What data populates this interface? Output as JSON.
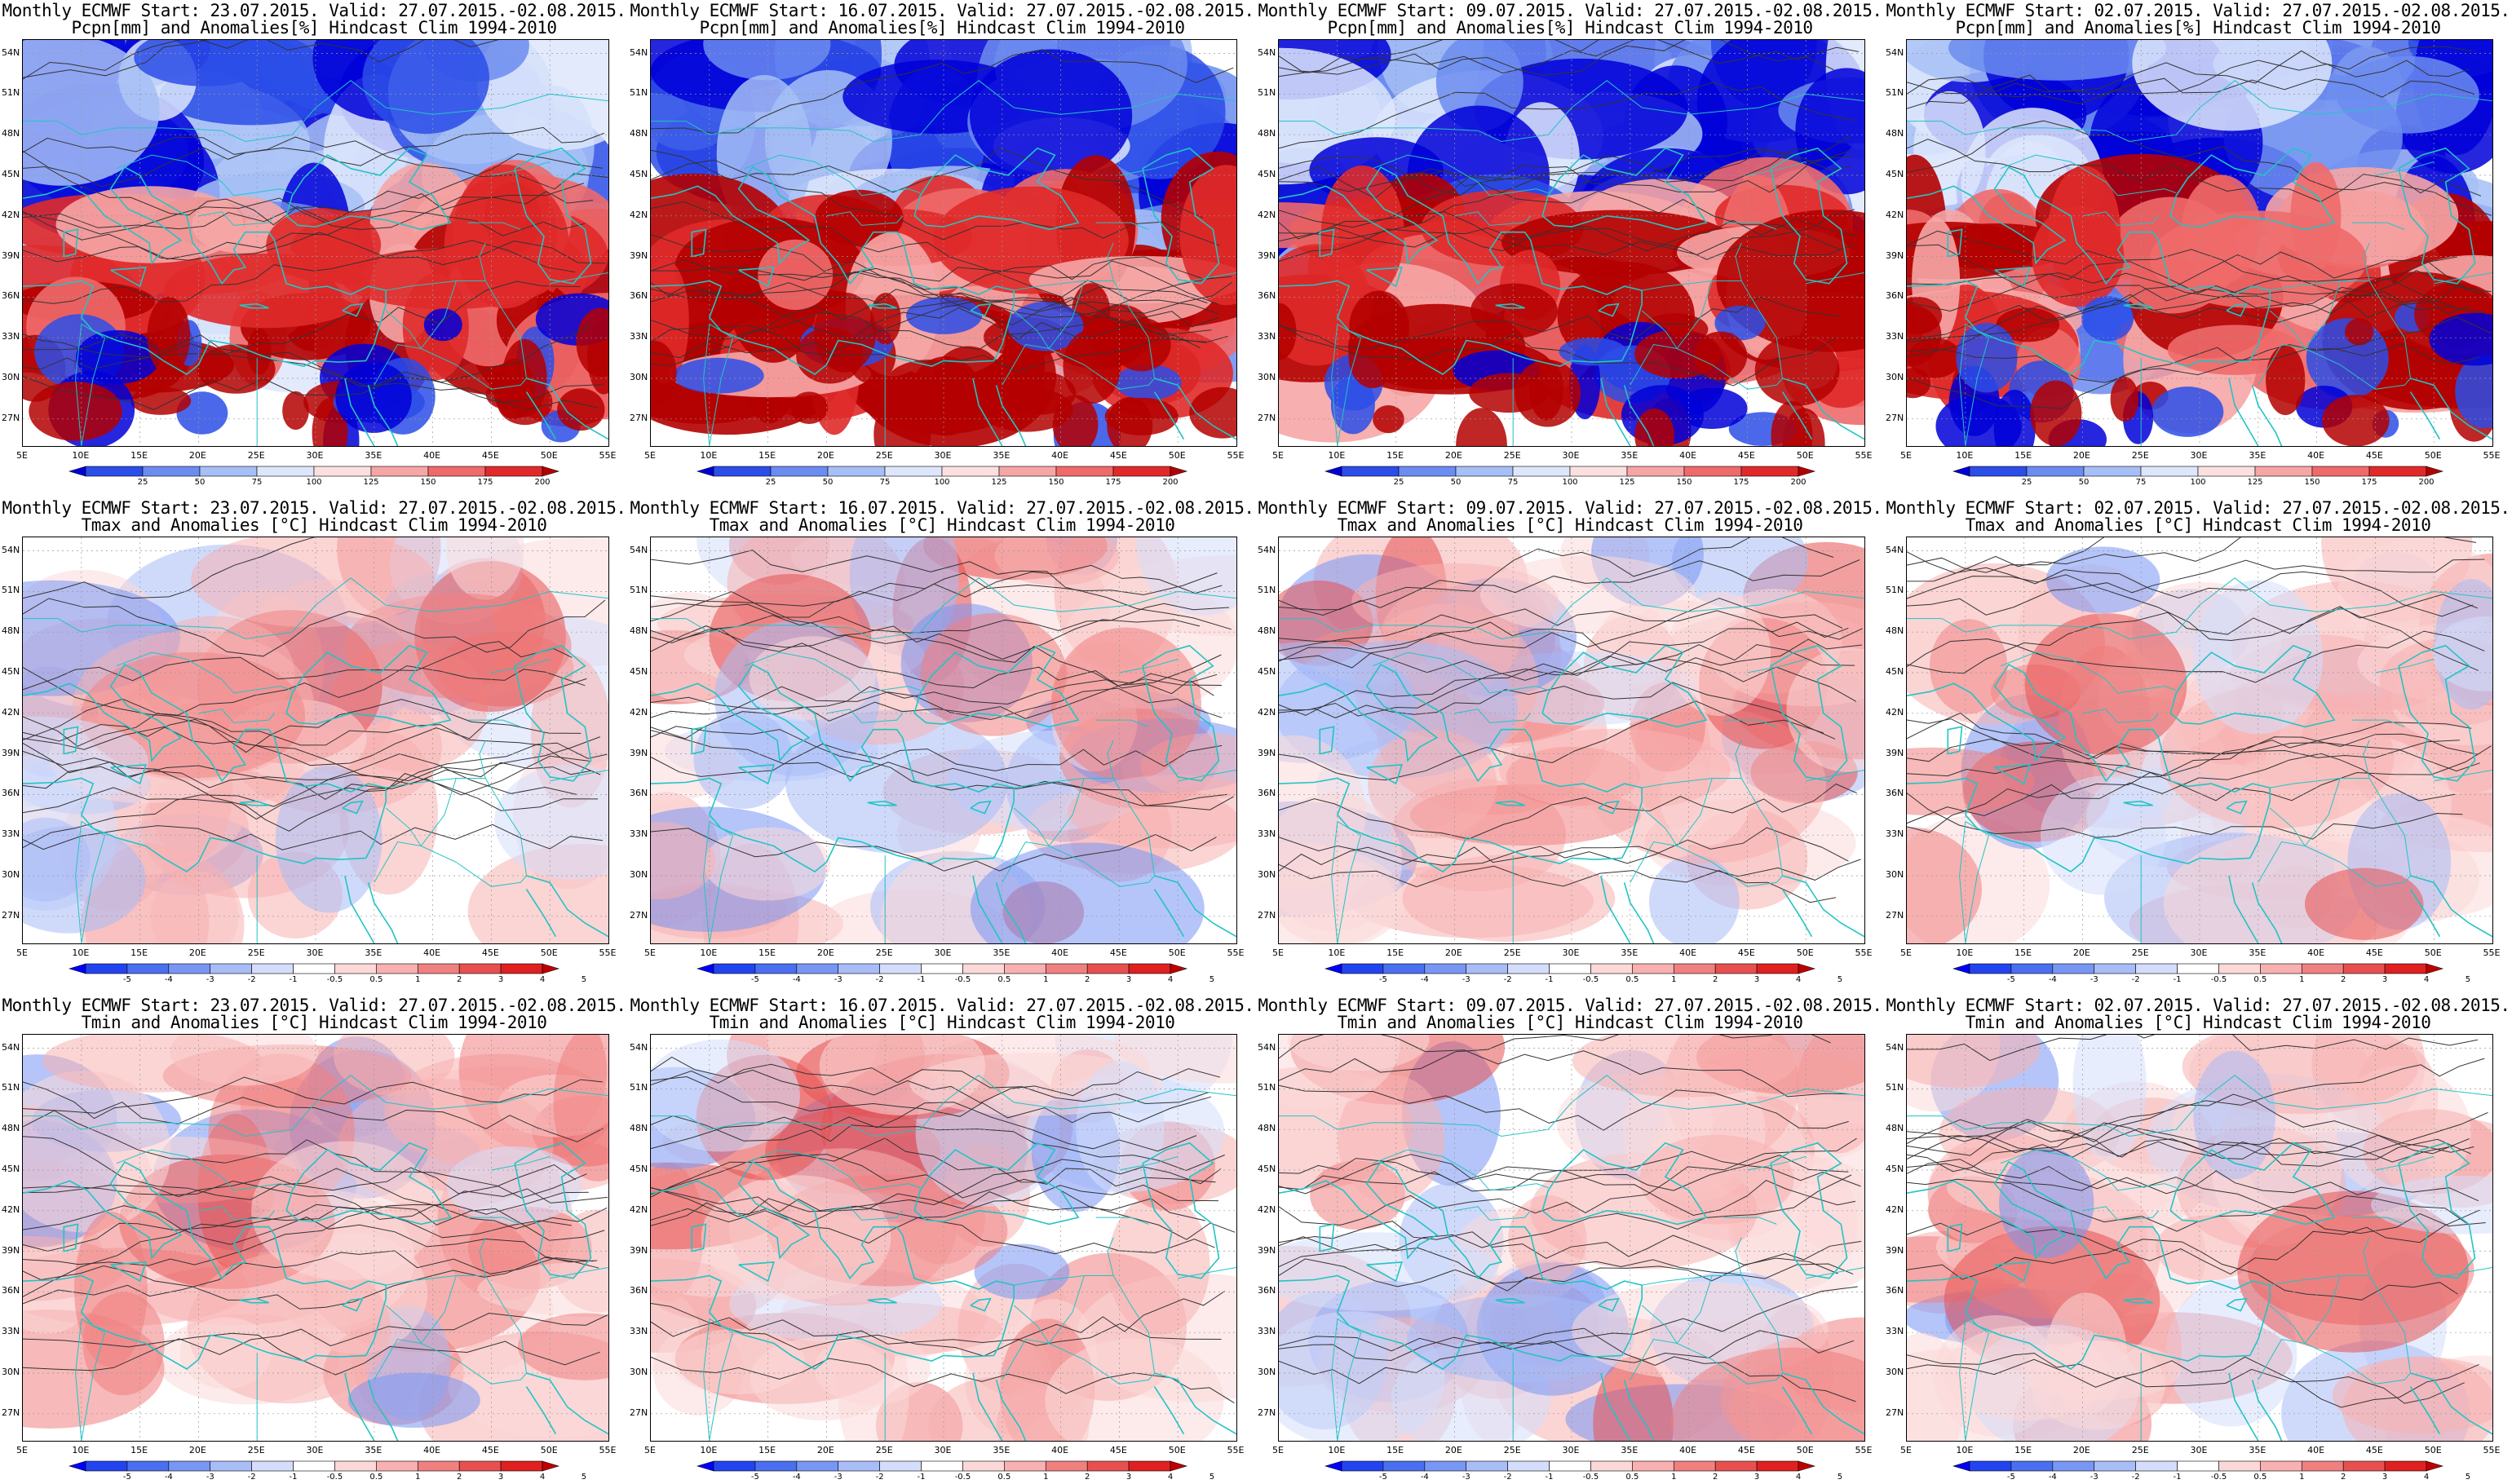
{
  "panels": [
    {
      "row": 0,
      "col": 0,
      "type": "precip",
      "title1": "Monthly ECMWF Start: 23.07.2015. Valid: 27.07.2015.-02.08.2015.",
      "title2": "Pcpn[mm] and Anomalies[%] Hindcast Clim 1994-2010",
      "seed": 11
    },
    {
      "row": 0,
      "col": 1,
      "type": "precip",
      "title1": "Monthly ECMWF Start: 16.07.2015. Valid: 27.07.2015.-02.08.2015.",
      "title2": "Pcpn[mm] and Anomalies[%] Hindcast Clim 1994-2010",
      "seed": 12
    },
    {
      "row": 0,
      "col": 2,
      "type": "precip",
      "title1": "Monthly ECMWF Start: 09.07.2015. Valid: 27.07.2015.-02.08.2015.",
      "title2": "Pcpn[mm] and Anomalies[%] Hindcast Clim 1994-2010",
      "seed": 13
    },
    {
      "row": 0,
      "col": 3,
      "type": "precip",
      "title1": "Monthly ECMWF Start: 02.07.2015. Valid: 27.07.2015.-02.08.2015.",
      "title2": "Pcpn[mm] and Anomalies[%] Hindcast Clim 1994-2010",
      "seed": 14
    },
    {
      "row": 1,
      "col": 0,
      "type": "temp",
      "title1": "Monthly ECMWF Start: 23.07.2015. Valid: 27.07.2015.-02.08.2015.",
      "title2": "Tmax and Anomalies [°C] Hindcast Clim 1994-2010",
      "seed": 21
    },
    {
      "row": 1,
      "col": 1,
      "type": "temp",
      "title1": "Monthly ECMWF Start: 16.07.2015. Valid: 27.07.2015.-02.08.2015.",
      "title2": "Tmax and Anomalies [°C] Hindcast Clim 1994-2010",
      "seed": 22
    },
    {
      "row": 1,
      "col": 2,
      "type": "temp",
      "title1": "Monthly ECMWF Start: 09.07.2015. Valid: 27.07.2015.-02.08.2015.",
      "title2": "Tmax and Anomalies [°C] Hindcast Clim 1994-2010",
      "seed": 23
    },
    {
      "row": 1,
      "col": 3,
      "type": "temp",
      "title1": "Monthly ECMWF Start: 02.07.2015. Valid: 27.07.2015.-02.08.2015.",
      "title2": "Tmax and Anomalies [°C] Hindcast Clim 1994-2010",
      "seed": 24
    },
    {
      "row": 2,
      "col": 0,
      "type": "temp",
      "title1": "Monthly ECMWF Start: 23.07.2015. Valid: 27.07.2015.-02.08.2015.",
      "title2": "Tmin and Anomalies [°C] Hindcast Clim 1994-2010",
      "seed": 31
    },
    {
      "row": 2,
      "col": 1,
      "type": "temp",
      "title1": "Monthly ECMWF Start: 16.07.2015. Valid: 27.07.2015.-02.08.2015.",
      "title2": "Tmin and Anomalies [°C] Hindcast Clim 1994-2010",
      "seed": 32
    },
    {
      "row": 2,
      "col": 2,
      "type": "temp",
      "title1": "Monthly ECMWF Start: 09.07.2015. Valid: 27.07.2015.-02.08.2015.",
      "title2": "Tmin and Anomalies [°C] Hindcast Clim 1994-2010",
      "seed": 33
    },
    {
      "row": 2,
      "col": 3,
      "type": "temp",
      "title1": "Monthly ECMWF Start: 02.07.2015. Valid: 27.07.2015.-02.08.2015.",
      "title2": "Tmin and Anomalies [°C] Hindcast Clim 1994-2010",
      "seed": 34
    }
  ],
  "axes": {
    "lat_labels": [
      "54N",
      "51N",
      "48N",
      "45N",
      "42N",
      "39N",
      "36N",
      "33N",
      "30N",
      "27N"
    ],
    "lon_labels": [
      "5E",
      "10E",
      "15E",
      "20E",
      "25E",
      "30E",
      "35E",
      "40E",
      "45E",
      "50E",
      "55E"
    ]
  },
  "colorbars": {
    "precip": {
      "labels": [
        "25",
        "50",
        "75",
        "100",
        "125",
        "150",
        "175",
        "200"
      ],
      "colors": [
        "#0000d8",
        "#2b4ee8",
        "#6b8cf0",
        "#a6bff6",
        "#dde6fb",
        "#fbe0e0",
        "#f6a6a6",
        "#ef6a6a",
        "#e02a2a",
        "#b40000"
      ]
    },
    "temp": {
      "labels": [
        "-5",
        "-4",
        "-3",
        "-2",
        "-1",
        "-0.5",
        "0.5",
        "1",
        "2",
        "3",
        "4",
        "5"
      ],
      "colors": [
        "#0000ff",
        "#2244f0",
        "#4a70f0",
        "#7896f4",
        "#a8bcf8",
        "#d4defc",
        "#ffffff",
        "#fcd8d8",
        "#f8b0b0",
        "#f08080",
        "#e85050",
        "#e02020",
        "#c00000"
      ]
    }
  }
}
